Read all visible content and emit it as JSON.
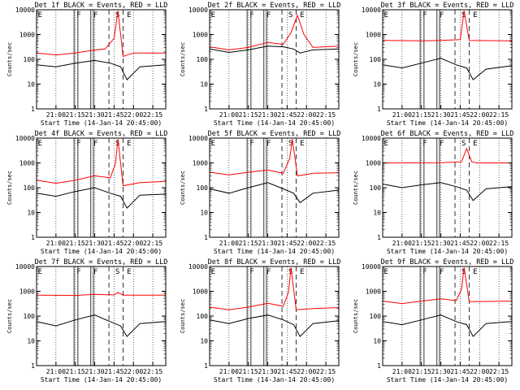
{
  "chart_data": [
    {
      "type": "line",
      "title": "Det 1f BLACK = Events, RED = LLD",
      "xlabel": "Start Time (14-Jan-14 20:45:00)",
      "ylabel": "Counts/sec",
      "yscale": "log",
      "ylim": [
        1,
        10000
      ],
      "xlim": [
        "20:45",
        "22:25"
      ],
      "xtick_labels": [
        "21:00",
        "21:15",
        "21:30",
        "21:45",
        "22:00",
        "22:15"
      ],
      "ytick_labels": [
        "1",
        "10",
        "100",
        "1000",
        "10000"
      ],
      "markers": [
        "F",
        "F",
        "S",
        "E"
      ],
      "series": [
        {
          "color": "#ff0000",
          "points": [
            [
              "20:45",
              180
            ],
            [
              "21:00",
              150
            ],
            [
              "21:15",
              180
            ],
            [
              "21:28",
              230
            ],
            [
              "21:38",
              260
            ],
            [
              "21:45",
              700
            ],
            [
              "21:48",
              9000
            ],
            [
              "21:52",
              130
            ],
            [
              "22:00",
              180
            ],
            [
              "22:25",
              180
            ]
          ]
        },
        {
          "color": "#000000",
          "points": [
            [
              "20:45",
              60
            ],
            [
              "21:00",
              50
            ],
            [
              "21:15",
              70
            ],
            [
              "21:30",
              90
            ],
            [
              "21:42",
              70
            ],
            [
              "21:50",
              50
            ],
            [
              "21:55",
              15
            ],
            [
              "22:05",
              50
            ],
            [
              "22:25",
              60
            ]
          ]
        }
      ]
    },
    {
      "type": "line",
      "title": "Det 2f BLACK = Events, RED = LLD",
      "xlabel": "Start Time (14-Jan-14 20:45:00)",
      "ylabel": "Counts/sec",
      "yscale": "log",
      "ylim": [
        1,
        10000
      ],
      "xlim": [
        "20:45",
        "22:25"
      ],
      "xtick_labels": [
        "21:00",
        "21:15",
        "21:30",
        "21:45",
        "22:00",
        "22:15"
      ],
      "ytick_labels": [
        "1",
        "10",
        "100",
        "1000",
        "10000"
      ],
      "markers": [
        "F",
        "F",
        "S",
        "E"
      ],
      "series": [
        {
          "color": "#ff0000",
          "points": [
            [
              "20:45",
              320
            ],
            [
              "21:00",
              240
            ],
            [
              "21:15",
              300
            ],
            [
              "21:30",
              480
            ],
            [
              "21:42",
              400
            ],
            [
              "21:48",
              1200
            ],
            [
              "21:53",
              6000
            ],
            [
              "21:58",
              1000
            ],
            [
              "22:05",
              300
            ],
            [
              "22:25",
              340
            ]
          ]
        },
        {
          "color": "#000000",
          "points": [
            [
              "20:45",
              260
            ],
            [
              "21:00",
              190
            ],
            [
              "21:15",
              240
            ],
            [
              "21:30",
              340
            ],
            [
              "21:42",
              320
            ],
            [
              "21:50",
              260
            ],
            [
              "21:55",
              180
            ],
            [
              "22:05",
              240
            ],
            [
              "22:25",
              260
            ]
          ]
        }
      ]
    },
    {
      "type": "line",
      "title": "Det 3f BLACK = Events, RED = LLD",
      "xlabel": "Start Time (14-Jan-14 20:45:00)",
      "ylabel": "Counts/sec",
      "yscale": "log",
      "ylim": [
        1,
        10000
      ],
      "xlim": [
        "20:45",
        "22:25"
      ],
      "xtick_labels": [
        "21:00",
        "21:15",
        "21:30",
        "21:45",
        "22:00",
        "22:15"
      ],
      "ytick_labels": [
        "1",
        "10",
        "100",
        "1000",
        "10000"
      ],
      "markers": [
        "F",
        "F",
        "S",
        "E"
      ],
      "series": [
        {
          "color": "#ff0000",
          "points": [
            [
              "20:45",
              580
            ],
            [
              "21:15",
              560
            ],
            [
              "21:30",
              580
            ],
            [
              "21:45",
              620
            ],
            [
              "21:48",
              9000
            ],
            [
              "21:52",
              580
            ],
            [
              "22:25",
              560
            ]
          ]
        },
        {
          "color": "#000000",
          "points": [
            [
              "20:45",
              60
            ],
            [
              "21:00",
              45
            ],
            [
              "21:15",
              70
            ],
            [
              "21:30",
              110
            ],
            [
              "21:42",
              60
            ],
            [
              "21:50",
              45
            ],
            [
              "21:55",
              15
            ],
            [
              "22:05",
              40
            ],
            [
              "22:25",
              55
            ]
          ]
        }
      ]
    },
    {
      "type": "line",
      "title": "Det 4f BLACK = Events, RED = LLD",
      "xlabel": "Start Time (14-Jan-14 20:45:00)",
      "ylabel": "Counts/sec",
      "yscale": "log",
      "ylim": [
        1,
        10000
      ],
      "xlim": [
        "20:45",
        "22:25"
      ],
      "xtick_labels": [
        "21:00",
        "21:15",
        "21:30",
        "21:45",
        "22:00",
        "22:15"
      ],
      "ytick_labels": [
        "1",
        "10",
        "100",
        "1000",
        "10000"
      ],
      "markers": [
        "F",
        "F",
        "S",
        "E"
      ],
      "series": [
        {
          "color": "#ff0000",
          "points": [
            [
              "20:45",
              200
            ],
            [
              "21:00",
              150
            ],
            [
              "21:15",
              200
            ],
            [
              "21:30",
              300
            ],
            [
              "21:42",
              250
            ],
            [
              "21:46",
              900
            ],
            [
              "21:48",
              9000
            ],
            [
              "21:52",
              120
            ],
            [
              "22:05",
              160
            ],
            [
              "22:25",
              180
            ]
          ]
        },
        {
          "color": "#000000",
          "points": [
            [
              "20:45",
              60
            ],
            [
              "21:00",
              45
            ],
            [
              "21:15",
              70
            ],
            [
              "21:30",
              100
            ],
            [
              "21:42",
              60
            ],
            [
              "21:50",
              45
            ],
            [
              "21:55",
              15
            ],
            [
              "22:05",
              50
            ],
            [
              "22:25",
              55
            ]
          ]
        }
      ]
    },
    {
      "type": "line",
      "title": "Det 5f BLACK = Events, RED = LLD",
      "xlabel": "Start Time (14-Jan-14 20:45:00)",
      "ylabel": "Counts/sec",
      "yscale": "log",
      "ylim": [
        1,
        10000
      ],
      "xlim": [
        "20:45",
        "22:25"
      ],
      "xtick_labels": [
        "21:00",
        "21:15",
        "21:30",
        "21:45",
        "22:00",
        "22:15"
      ],
      "ytick_labels": [
        "1",
        "10",
        "100",
        "1000",
        "10000"
      ],
      "markers": [
        "F",
        "F",
        "S",
        "E"
      ],
      "series": [
        {
          "color": "#ff0000",
          "points": [
            [
              "20:45",
              420
            ],
            [
              "21:00",
              330
            ],
            [
              "21:15",
              420
            ],
            [
              "21:30",
              520
            ],
            [
              "21:42",
              380
            ],
            [
              "21:47",
              1500
            ],
            [
              "21:49",
              9000
            ],
            [
              "21:53",
              300
            ],
            [
              "22:05",
              380
            ],
            [
              "22:25",
              400
            ]
          ]
        },
        {
          "color": "#000000",
          "points": [
            [
              "20:45",
              90
            ],
            [
              "21:00",
              60
            ],
            [
              "21:15",
              100
            ],
            [
              "21:30",
              160
            ],
            [
              "21:42",
              90
            ],
            [
              "21:50",
              60
            ],
            [
              "21:55",
              25
            ],
            [
              "22:05",
              60
            ],
            [
              "22:25",
              80
            ]
          ]
        }
      ]
    },
    {
      "type": "line",
      "title": "Det 6f BLACK = Events, RED = LLD",
      "xlabel": "Start Time (14-Jan-14 20:45:00)",
      "ylabel": "Counts/sec",
      "yscale": "log",
      "ylim": [
        1,
        10000
      ],
      "xlim": [
        "20:45",
        "22:25"
      ],
      "xtick_labels": [
        "21:00",
        "21:15",
        "21:30",
        "21:45",
        "22:00",
        "22:15"
      ],
      "ytick_labels": [
        "1",
        "10",
        "100",
        "1000",
        "10000"
      ],
      "markers": [
        "F",
        "F",
        "S",
        "E"
      ],
      "series": [
        {
          "color": "#ff0000",
          "points": [
            [
              "20:45",
              1000
            ],
            [
              "21:30",
              1020
            ],
            [
              "21:46",
              1100
            ],
            [
              "21:50",
              3800
            ],
            [
              "21:54",
              1100
            ],
            [
              "21:58",
              1000
            ],
            [
              "22:25",
              1000
            ]
          ]
        },
        {
          "color": "#000000",
          "points": [
            [
              "20:45",
              140
            ],
            [
              "21:00",
              100
            ],
            [
              "21:15",
              130
            ],
            [
              "21:30",
              160
            ],
            [
              "21:42",
              110
            ],
            [
              "21:50",
              80
            ],
            [
              "21:55",
              30
            ],
            [
              "22:05",
              90
            ],
            [
              "22:25",
              110
            ]
          ]
        }
      ]
    },
    {
      "type": "line",
      "title": "Det 7f BLACK = Events, RED = LLD",
      "xlabel": "Start Time (14-Jan-14 20:45:00)",
      "ylabel": "Counts/sec",
      "yscale": "log",
      "ylim": [
        1,
        10000
      ],
      "xlim": [
        "20:45",
        "22:25"
      ],
      "xtick_labels": [
        "21:00",
        "21:15",
        "21:30",
        "21:45",
        "22:00",
        "22:15"
      ],
      "ytick_labels": [
        "1",
        "10",
        "100",
        "1000",
        "10000"
      ],
      "markers": [
        "F",
        "F",
        "S",
        "E"
      ],
      "series": [
        {
          "color": "#ff0000",
          "points": [
            [
              "20:45",
              700
            ],
            [
              "21:15",
              680
            ],
            [
              "21:30",
              750
            ],
            [
              "21:45",
              720
            ],
            [
              "21:48",
              900
            ],
            [
              "21:52",
              700
            ],
            [
              "22:25",
              700
            ]
          ]
        },
        {
          "color": "#000000",
          "points": [
            [
              "20:45",
              60
            ],
            [
              "21:00",
              40
            ],
            [
              "21:15",
              70
            ],
            [
              "21:30",
              110
            ],
            [
              "21:42",
              60
            ],
            [
              "21:50",
              40
            ],
            [
              "21:55",
              15
            ],
            [
              "22:05",
              50
            ],
            [
              "22:25",
              60
            ]
          ]
        }
      ]
    },
    {
      "type": "line",
      "title": "Det 8f BLACK = Events, RED = LLD",
      "xlabel": "Start Time (14-Jan-14 20:45:00)",
      "ylabel": "Counts/sec",
      "yscale": "log",
      "ylim": [
        1,
        10000
      ],
      "xlim": [
        "20:45",
        "22:25"
      ],
      "xtick_labels": [
        "21:00",
        "21:15",
        "21:30",
        "21:45",
        "22:00",
        "22:15"
      ],
      "ytick_labels": [
        "1",
        "10",
        "100",
        "1000",
        "10000"
      ],
      "markers": [
        "F",
        "F",
        "S",
        "E"
      ],
      "series": [
        {
          "color": "#ff0000",
          "points": [
            [
              "20:45",
              230
            ],
            [
              "21:00",
              180
            ],
            [
              "21:15",
              230
            ],
            [
              "21:30",
              330
            ],
            [
              "21:42",
              250
            ],
            [
              "21:46",
              900
            ],
            [
              "21:48",
              9000
            ],
            [
              "21:52",
              180
            ],
            [
              "22:05",
              200
            ],
            [
              "22:25",
              220
            ]
          ]
        },
        {
          "color": "#000000",
          "points": [
            [
              "20:45",
              70
            ],
            [
              "21:00",
              50
            ],
            [
              "21:15",
              80
            ],
            [
              "21:30",
              110
            ],
            [
              "21:42",
              70
            ],
            [
              "21:50",
              45
            ],
            [
              "21:55",
              15
            ],
            [
              "22:05",
              50
            ],
            [
              "22:25",
              65
            ]
          ]
        }
      ]
    },
    {
      "type": "line",
      "title": "Det 9f BLACK = Events, RED = LLD",
      "xlabel": "Start Time (14-Jan-14 20:45:00)",
      "ylabel": "Counts/sec",
      "yscale": "log",
      "ylim": [
        1,
        10000
      ],
      "xlim": [
        "20:45",
        "22:25"
      ],
      "xtick_labels": [
        "21:00",
        "21:15",
        "21:30",
        "21:45",
        "22:00",
        "22:15"
      ],
      "ytick_labels": [
        "1",
        "10",
        "100",
        "1000",
        "10000"
      ],
      "markers": [
        "F",
        "F",
        "S",
        "E"
      ],
      "series": [
        {
          "color": "#ff0000",
          "points": [
            [
              "20:45",
              400
            ],
            [
              "21:00",
              320
            ],
            [
              "21:15",
              400
            ],
            [
              "21:30",
              500
            ],
            [
              "21:42",
              420
            ],
            [
              "21:46",
              1200
            ],
            [
              "21:48",
              9000
            ],
            [
              "21:52",
              380
            ],
            [
              "22:25",
              400
            ]
          ]
        },
        {
          "color": "#000000",
          "points": [
            [
              "20:45",
              60
            ],
            [
              "21:00",
              45
            ],
            [
              "21:15",
              70
            ],
            [
              "21:30",
              110
            ],
            [
              "21:42",
              60
            ],
            [
              "21:50",
              45
            ],
            [
              "21:55",
              15
            ],
            [
              "22:05",
              50
            ],
            [
              "22:25",
              60
            ]
          ]
        }
      ]
    }
  ]
}
